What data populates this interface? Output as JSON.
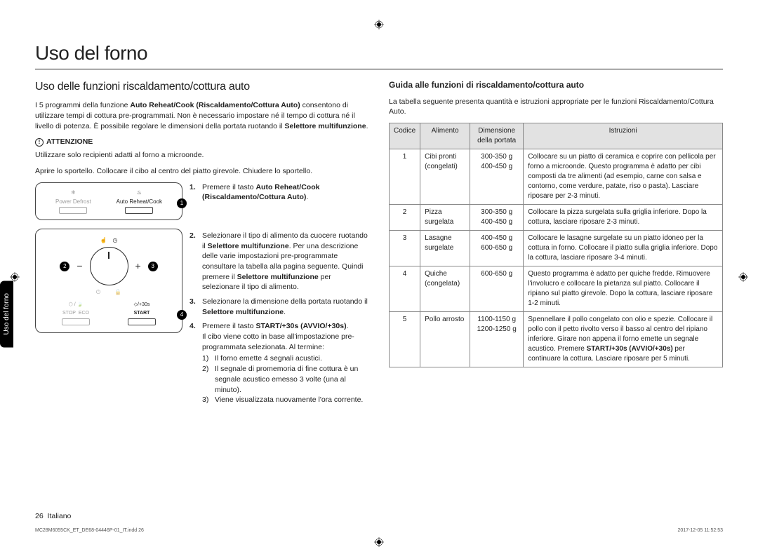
{
  "page": {
    "title": "Uso del forno",
    "side_tab": "Uso del forno",
    "footer_page": "26",
    "footer_lang": "Italiano",
    "footnote_left": "MC28M6055CK_ET_DE68-04446P-01_IT.indd   26",
    "footnote_right": "2017-12-05   ‭11:52:53"
  },
  "left": {
    "h2": "Uso delle funzioni riscaldamento/cottura auto",
    "intro_pre": "I 5 programmi della funzione ",
    "intro_bold": "Auto Reheat/Cook (Riscaldamento/Cottura Auto)",
    "intro_post": " consentono di utilizzare tempi di cottura pre-programmati. Non è necessario impostare né il tempo di cottura né il livello di potenza. È possibile regolare le dimensioni della portata ruotando il ",
    "intro_bold2": "Selettore multifunzione",
    "attenzione": "ATTENZIONE",
    "attn_text": "Utilizzare solo recipienti adatti al forno a microonde.",
    "open_text": "Aprire lo sportello. Collocare il cibo al centro del piatto girevole. Chiudere lo sportello.",
    "panel": {
      "power_defrost": "Power Defrost",
      "auto_reheat": "Auto Reheat/Cook",
      "stop": "STOP",
      "eco": "ECO",
      "start": "START",
      "plus30": "/+30s"
    },
    "steps": [
      {
        "pre": "Premere il tasto ",
        "b1": "Auto Reheat/Cook (Riscaldamento/Cottura Auto)",
        "post": "."
      },
      {
        "pre": "Selezionare il tipo di alimento da cuocere ruotando il ",
        "b1": "Selettore multifunzione",
        "mid": ". Per una descrizione delle varie impostazioni pre-programmate consultare la tabella alla pagina seguente. Quindi premere il ",
        "b2": "Selettore multifunzione",
        "post": " per selezionare il tipo di alimento."
      },
      {
        "pre": "Selezionare la dimensione della portata ruotando il ",
        "b1": "Selettore multifunzione",
        "post": "."
      },
      {
        "pre": "Premere il tasto ",
        "b1": "START/+30s (AVVIO/+30s)",
        "post": ".",
        "tail": "Il cibo viene cotto in base all'impostazione pre-programmata selezionata. Al termine:"
      }
    ],
    "sublist": [
      "Il forno emette 4 segnali acustici.",
      "Il segnale di promemoria di fine cottura è un segnale acustico emesso 3 volte (una al minuto).",
      "Viene visualizzata nuovamente l'ora corrente."
    ]
  },
  "right": {
    "h3": "Guida alle funzioni di riscaldamento/cottura auto",
    "intro": "La tabella seguente presenta quantità e istruzioni appropriate per le funzioni Riscaldamento/Cottura Auto.",
    "headers": {
      "code": "Codice",
      "food": "Alimento",
      "size": "Dimensione della portata",
      "instr": "Istruzioni"
    },
    "rows": [
      {
        "code": "1",
        "food": "Cibi pronti (congelati)",
        "size": "300-350 g\n400-450 g",
        "instr": "Collocare su un piatto di ceramica e coprire con pellicola per forno a microonde. Questo programma è adatto per cibi composti da tre alimenti (ad esempio, carne con salsa e contorno, come verdure, patate, riso o pasta). Lasciare riposare per 2-3 minuti."
      },
      {
        "code": "2",
        "food": "Pizza surgelata",
        "size": "300-350 g\n400-450 g",
        "instr": "Collocare la pizza surgelata sulla griglia inferiore. Dopo la cottura, lasciare riposare 2-3 minuti."
      },
      {
        "code": "3",
        "food": "Lasagne surgelate",
        "size": "400-450 g\n600-650 g",
        "instr": "Collocare le lasagne surgelate su un piatto idoneo per la cottura in forno. Collocare il piatto sulla griglia inferiore. Dopo la cottura, lasciare riposare 3-4 minuti."
      },
      {
        "code": "4",
        "food": "Quiche (congelata)",
        "size": "600-650 g",
        "instr": "Questo programma è adatto per quiche fredde. Rimuovere l'involucro e collocare la pietanza sul piatto. Collocare il ripiano sul piatto girevole. Dopo la cottura, lasciare riposare 1-2 minuti."
      },
      {
        "code": "5",
        "food": "Pollo arrosto",
        "size": "1100-1150 g\n1200-1250 g",
        "instr_pre": "Spennellare il pollo congelato con olio e spezie. Collocare il pollo con il petto rivolto verso il basso al centro del ripiano inferiore. Girare non appena il forno emette un segnale acustico. Premere ",
        "instr_b": "START/+30s (AVVIO/+30s)",
        "instr_post": " per continuare la cottura. Lasciare riposare per 5 minuti."
      }
    ]
  },
  "style": {
    "badge_bg": "#000000",
    "header_bg": "#e2e2e2"
  }
}
